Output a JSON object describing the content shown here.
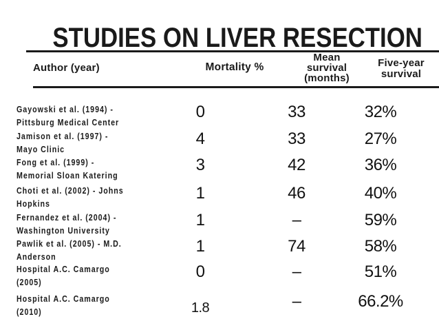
{
  "slide": {
    "title": "STUDIES ON LIVER RESECTION",
    "background_color": "#ffffff",
    "text_color": "#1a1a1a"
  },
  "table": {
    "headers": {
      "author": "Author (year)",
      "mortality": "Mortality %",
      "mean_survival": [
        "Mean",
        "survival",
        "(months)"
      ],
      "five_year": [
        "Five-year",
        "survival"
      ]
    },
    "rows": [
      {
        "author_line1": "Gayowski et al. (1994) -",
        "author_line2": "Pittsburg Medical Center",
        "mortality": "0",
        "mean_survival": "33",
        "five_year": "32%"
      },
      {
        "author_line1": "Jamison et al. (1997) -",
        "author_line2": "Mayo Clinic",
        "mortality": "4",
        "mean_survival": "33",
        "five_year": "27%"
      },
      {
        "author_line1": "Fong et al. (1999) -",
        "author_line2": "Memorial Sloan Katering",
        "mortality": "3",
        "mean_survival": "42",
        "five_year": "36%"
      },
      {
        "author_line1": "Choti et al. (2002) - Johns",
        "author_line2": "Hopkins",
        "mortality": "1",
        "mean_survival": "46",
        "five_year": "40%"
      },
      {
        "author_line1": "Fernandez et al. (2004) -",
        "author_line2": "Washington University",
        "mortality": "1",
        "mean_survival": "–",
        "five_year": "59%"
      },
      {
        "author_line1": "Pawlik et al. (2005) - M.D.",
        "author_line2": "Anderson",
        "mortality": "1",
        "mean_survival": "74",
        "five_year": "58%"
      },
      {
        "author_line1": "Hospital A.C. Camargo",
        "author_line2": "(2005)",
        "mortality": "0",
        "mean_survival": "–",
        "five_year": "51%"
      },
      {
        "author_line1": "Hospital A.C. Camargo",
        "author_line2": "(2010)",
        "mortality": "1.8",
        "mean_survival": "–",
        "five_year": "66.2%"
      }
    ]
  }
}
